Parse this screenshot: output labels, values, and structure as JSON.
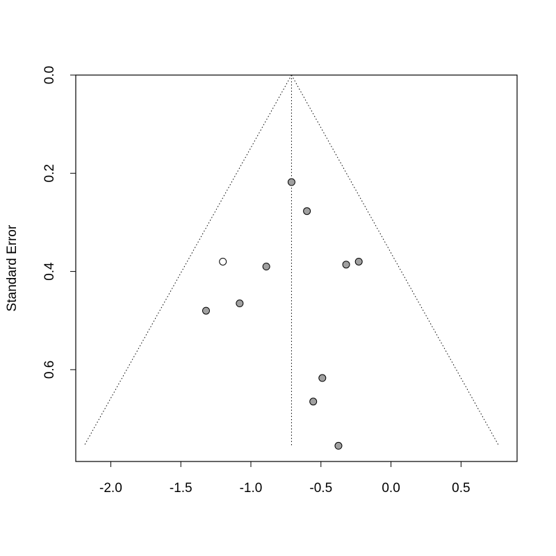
{
  "chart_data": {
    "type": "scatter",
    "title": "",
    "xlabel": "",
    "ylabel": "Standard Error",
    "xlim": [
      -2.25,
      0.9
    ],
    "ylim": [
      0.0,
      0.787
    ],
    "y_reversed": true,
    "x_ticks": [
      "-2.0",
      "-1.5",
      "-1.0",
      "-0.5",
      "0.0",
      "0.5"
    ],
    "y_ticks": [
      "0.0",
      "0.2",
      "0.4",
      "0.6"
    ],
    "grid": false,
    "funnel": {
      "center": -0.71,
      "apex_se": 0.0,
      "max_se": 0.755,
      "left_bottom": -2.19,
      "right_bottom": 0.77
    },
    "points": [
      {
        "x": -0.71,
        "y": 0.218,
        "fill": "#a0a0a0"
      },
      {
        "x": -0.6,
        "y": 0.277,
        "fill": "#a0a0a0"
      },
      {
        "x": -1.2,
        "y": 0.38,
        "fill": "#ffffff"
      },
      {
        "x": -0.89,
        "y": 0.39,
        "fill": "#a0a0a0"
      },
      {
        "x": -0.32,
        "y": 0.386,
        "fill": "#a0a0a0"
      },
      {
        "x": -0.23,
        "y": 0.38,
        "fill": "#a0a0a0"
      },
      {
        "x": -1.08,
        "y": 0.465,
        "fill": "#a0a0a0"
      },
      {
        "x": -1.32,
        "y": 0.48,
        "fill": "#a0a0a0"
      },
      {
        "x": -0.49,
        "y": 0.617,
        "fill": "#a0a0a0"
      },
      {
        "x": -0.555,
        "y": 0.665,
        "fill": "#a0a0a0"
      },
      {
        "x": -0.375,
        "y": 0.755,
        "fill": "#a0a0a0"
      }
    ]
  }
}
